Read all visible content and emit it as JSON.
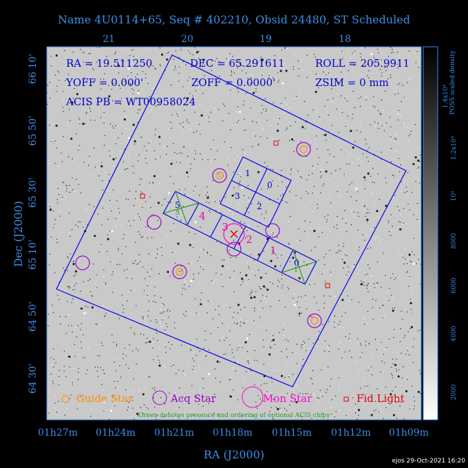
{
  "header": {
    "title": "Name 4U0114+65, Seq # 402210, Obsid 24480, ST Scheduled"
  },
  "info": {
    "ra": "RA = 19.511250",
    "dec": "DEC = 65.291611",
    "roll": "ROLL = 205.9911",
    "yoff": "YOFF =   0.000'",
    "zoff": "ZOFF =  0.0000'",
    "zsim": "ZSIM = 0 mm",
    "acis_pb": "ACIS PB = WT00958024"
  },
  "axes": {
    "x_title": "RA (J2000)",
    "y_title": "Dec (J2000)",
    "x_bottom_ticks": [
      "01h27m",
      "01h24m",
      "01h21m",
      "01h18m",
      "01h15m",
      "01h12m",
      "01h09m"
    ],
    "x_top_ticks": [
      "21",
      "20",
      "19",
      "18"
    ],
    "y_ticks": [
      "66 10'",
      "65 50'",
      "65 30'",
      "65 10'",
      "64 50'",
      "64 30'"
    ]
  },
  "colorbar": {
    "title": "POSS scaled density",
    "ticks": [
      "2000",
      "4000",
      "6000",
      "8000",
      "10⁴",
      "1.2x10⁴",
      "1.4x10⁴"
    ]
  },
  "chips": {
    "acis_i": [
      "1",
      "0",
      "3",
      "2"
    ],
    "acis_s": [
      "5",
      "4",
      "3",
      "2",
      "1",
      "0"
    ],
    "optional": [
      "3",
      "1"
    ]
  },
  "legend": {
    "items": [
      "Guide Star",
      "Acq Star",
      "Mon Star",
      "Fid Light"
    ],
    "note": "Green denotes presence and ordering of optional ACIS chips"
  },
  "footer": {
    "timestamp": "ejos 29-Oct-2021 16:20"
  }
}
